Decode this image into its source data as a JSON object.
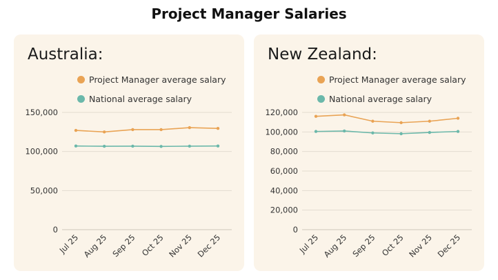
{
  "page": {
    "title": "Project Manager Salaries"
  },
  "colors": {
    "pm": "#e9a354",
    "national": "#6bb8aa",
    "grid": "#e3dcd0",
    "axis": "#cfc7bb"
  },
  "chart_data": [
    {
      "type": "line",
      "title": "Australia:",
      "categories": [
        "Jul 25",
        "Aug 25",
        "Sep 25",
        "Oct 25",
        "Nov 25",
        "Dec 25"
      ],
      "series": [
        {
          "name": "Project Manager average salary",
          "values": [
            127000,
            125000,
            128000,
            128000,
            130500,
            129500
          ]
        },
        {
          "name": "National average salary",
          "values": [
            107000,
            106700,
            106800,
            106500,
            106800,
            107000
          ]
        }
      ],
      "ylim": [
        0,
        150000
      ],
      "yticks": [
        0,
        50000,
        100000,
        150000
      ],
      "ytick_labels": [
        "0",
        "50,000",
        "100,000",
        "150,000"
      ],
      "grid": true,
      "legend": "top"
    },
    {
      "type": "line",
      "title": "New Zealand:",
      "categories": [
        "Jul 25",
        "Aug 25",
        "Sep 25",
        "Oct 25",
        "Nov 25",
        "Dec 25"
      ],
      "series": [
        {
          "name": "Project Manager average salary",
          "values": [
            116000,
            117500,
            111000,
            109500,
            111000,
            114000
          ]
        },
        {
          "name": "National average salary",
          "values": [
            100500,
            101000,
            99000,
            98200,
            99500,
            100500
          ]
        }
      ],
      "ylim": [
        0,
        120000
      ],
      "yticks": [
        0,
        20000,
        40000,
        60000,
        80000,
        100000,
        120000
      ],
      "ytick_labels": [
        "0",
        "20,000",
        "40,000",
        "60,000",
        "80,000",
        "100,000",
        "120,000"
      ],
      "grid": true,
      "legend": "top"
    }
  ]
}
